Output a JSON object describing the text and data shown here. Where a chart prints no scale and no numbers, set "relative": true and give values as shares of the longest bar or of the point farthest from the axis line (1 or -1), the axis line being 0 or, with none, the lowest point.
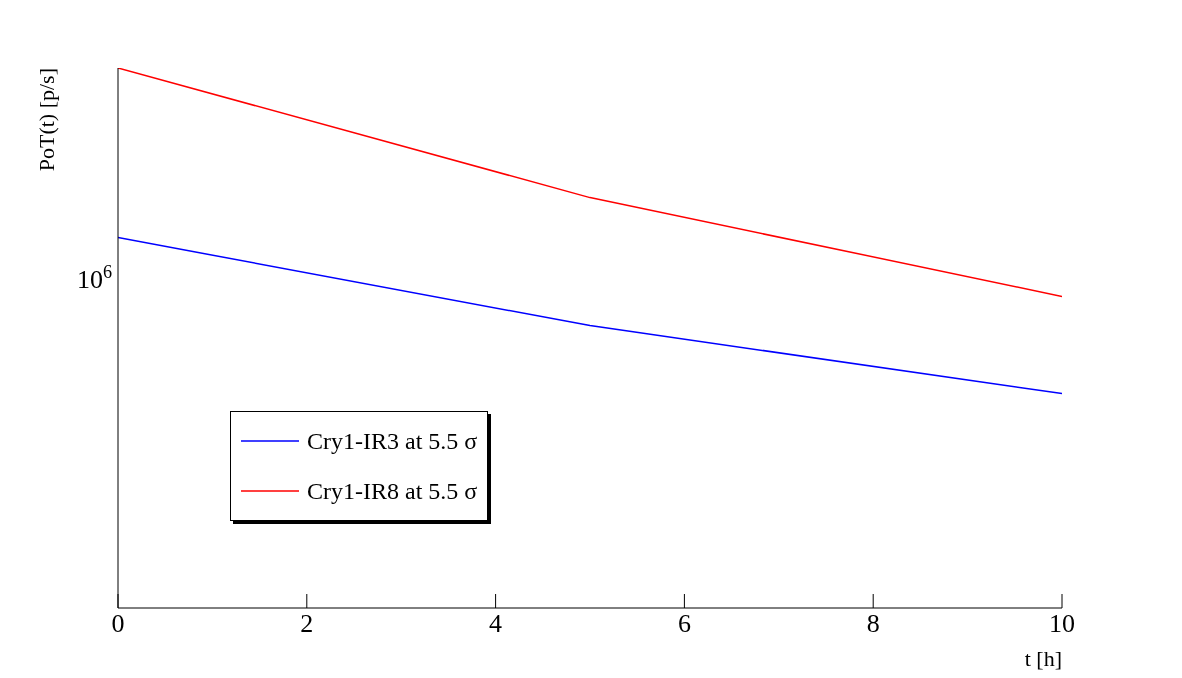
{
  "chart_data": {
    "type": "line",
    "xlabel": "t [h]",
    "ylabel": "PoT(t) [p/s]",
    "annotations": [
      "10$^{6}$"
    ],
    "x": [
      0,
      5,
      10
    ],
    "series": [
      {
        "name": "Cry1-IR3 at 5.5 σ",
        "color": "#0000ff",
        "values": [
          0.686,
          0.523,
          0.397
        ]
      },
      {
        "name": "Cry1-IR8 at 5.5 σ",
        "color": "#ff0000",
        "values": [
          1,
          0.76,
          0.577
        ]
      }
    ],
    "relative": true,
    "xlim": [
      0,
      10
    ],
    "xticks": [
      0,
      2,
      4,
      6,
      8,
      10
    ],
    "legend": "left",
    "marker": "none",
    "line_style": "solid"
  }
}
